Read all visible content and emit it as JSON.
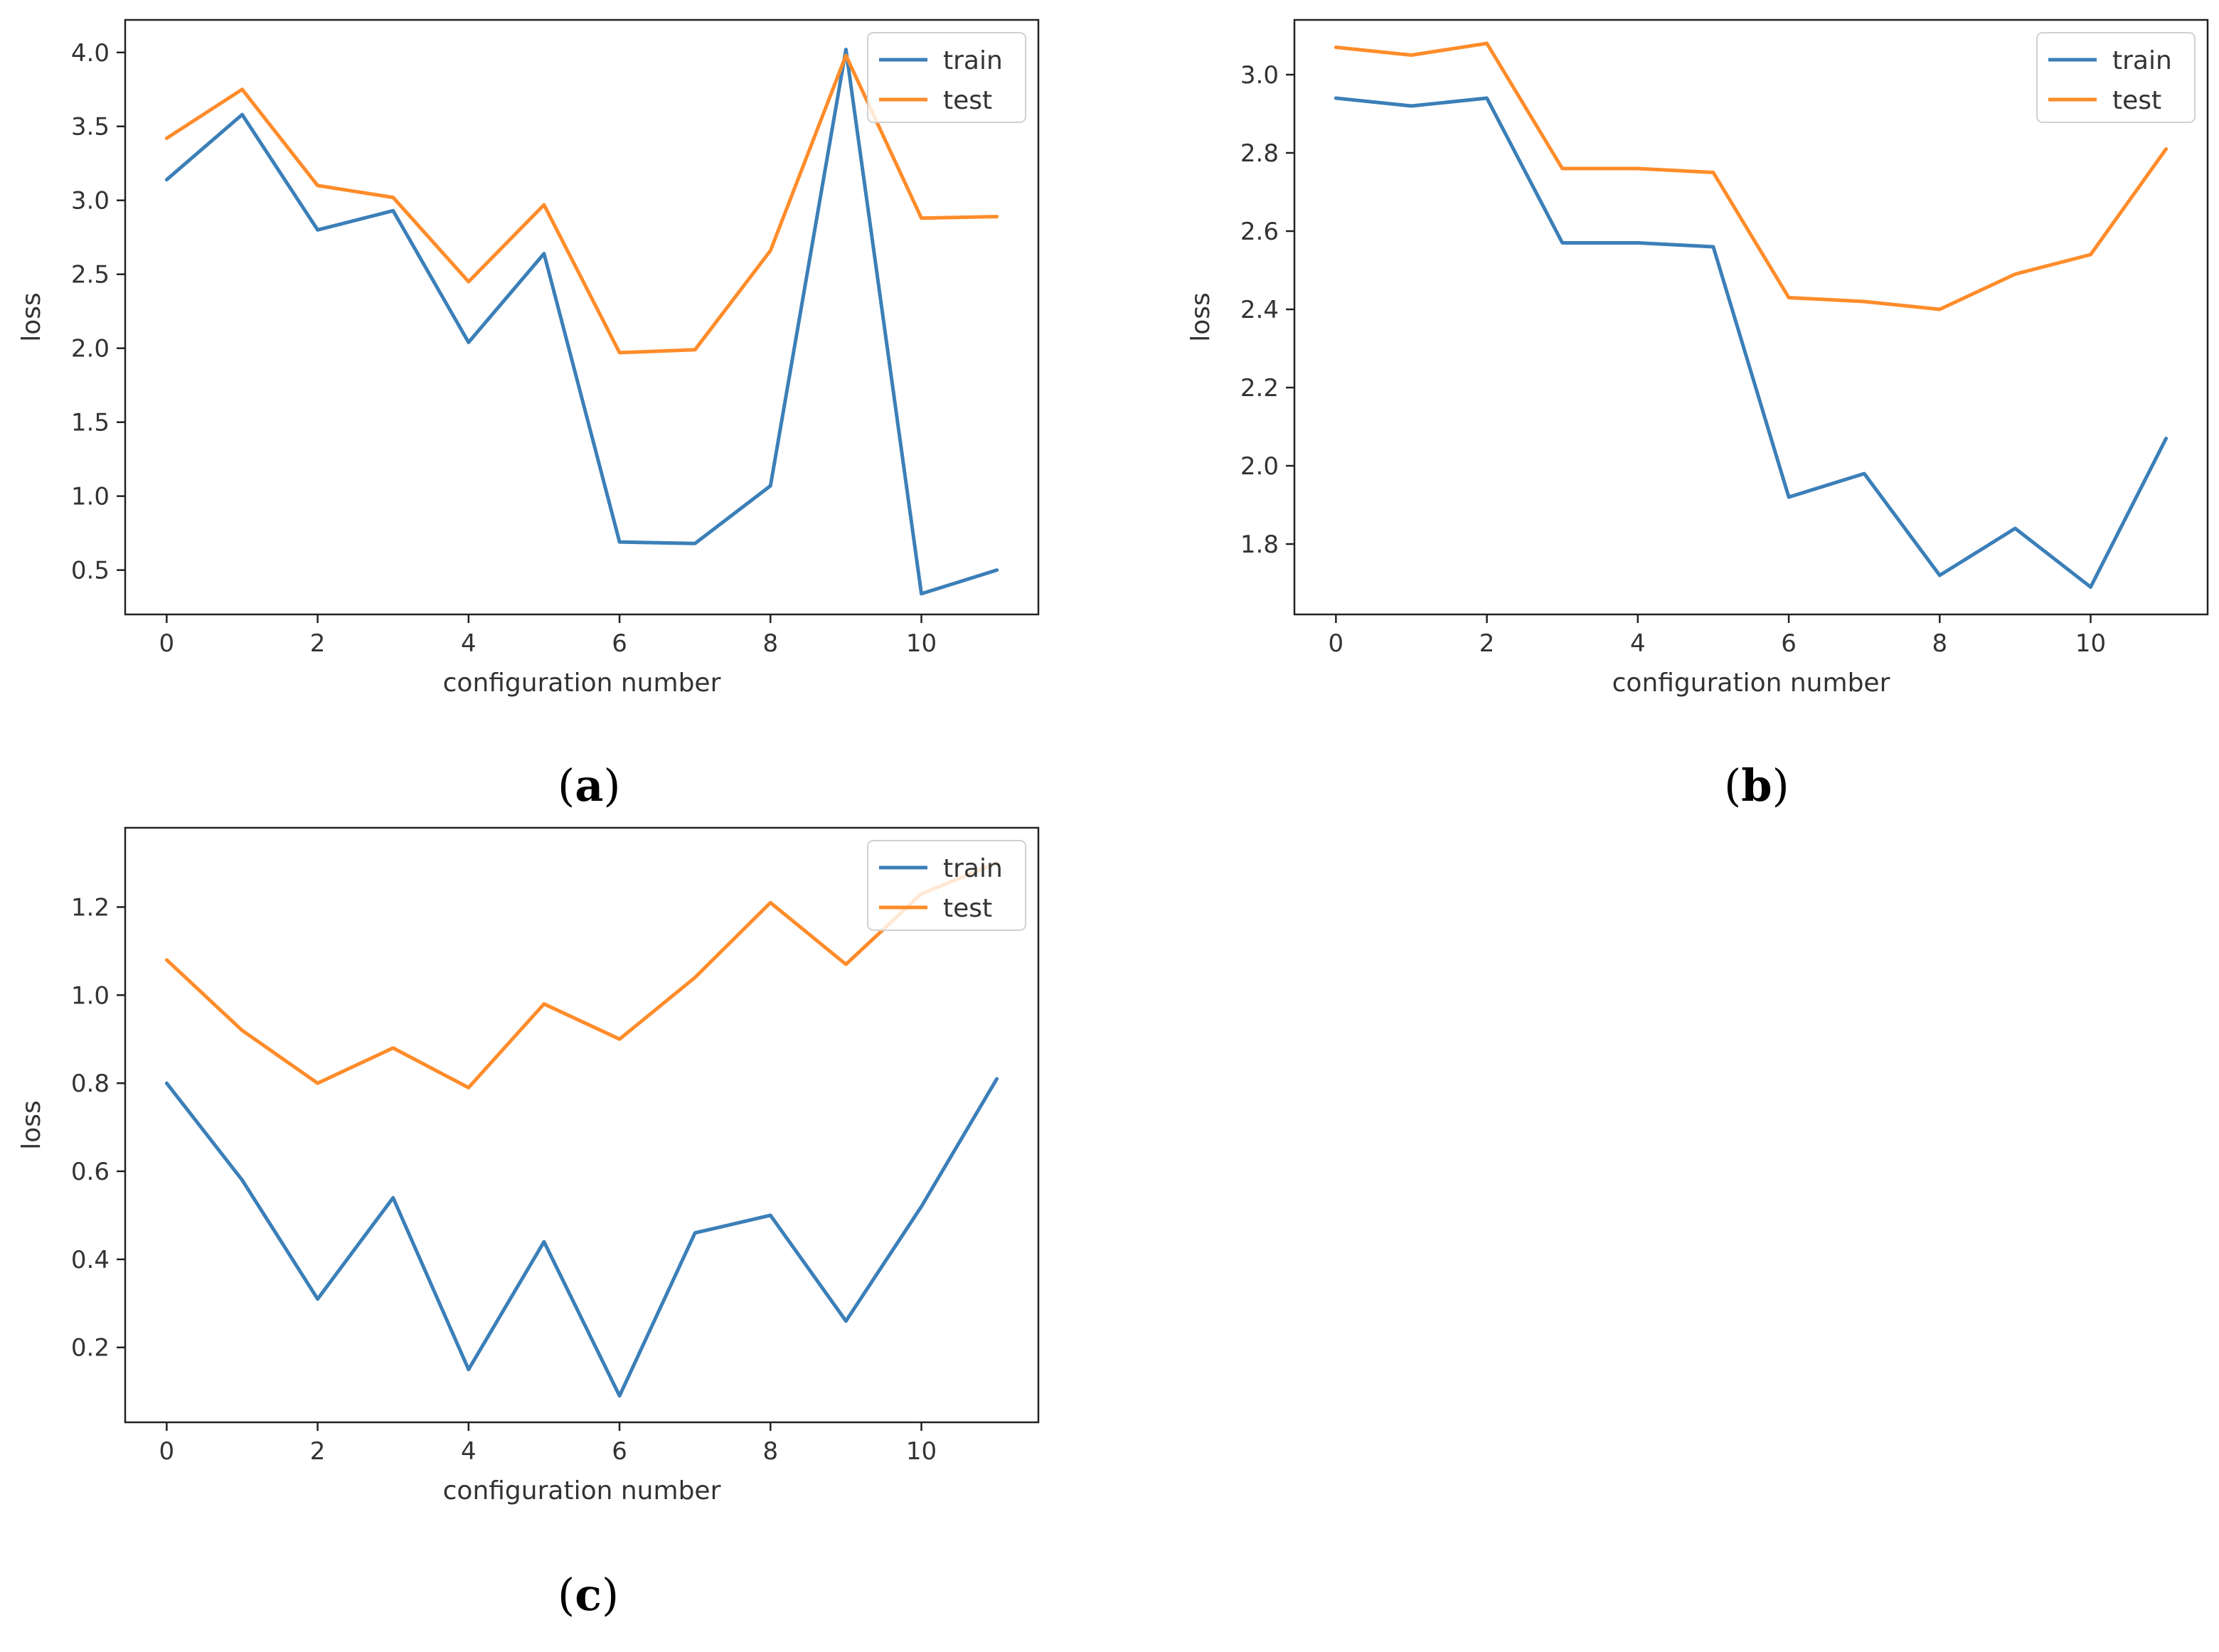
{
  "colors": {
    "train": "#3b7fb8",
    "test": "#ff8c2a",
    "axis": "#222222",
    "text": "#333333",
    "legend_border": "#d0d0d0"
  },
  "chart_data": [
    {
      "type": "line",
      "panel_label": "a",
      "xlabel": "configuration number",
      "ylabel": "loss",
      "xlim": [
        -0.55,
        11.55
      ],
      "ylim": [
        0.2,
        4.22
      ],
      "xticks": [
        0,
        2,
        4,
        6,
        8,
        10
      ],
      "xtick_labels": [
        "0",
        "2",
        "4",
        "6",
        "8",
        "10"
      ],
      "yticks": [
        0.5,
        1.0,
        1.5,
        2.0,
        2.5,
        3.0,
        3.5,
        4.0
      ],
      "ytick_labels": [
        "0.5",
        "1.0",
        "1.5",
        "2.0",
        "2.5",
        "3.0",
        "3.5",
        "4.0"
      ],
      "legend_position": "top-right",
      "x": [
        0,
        1,
        2,
        3,
        4,
        5,
        6,
        7,
        8,
        9,
        10,
        11
      ],
      "series": [
        {
          "name": "train",
          "color_key": "train",
          "values": [
            3.14,
            3.58,
            2.8,
            2.93,
            2.04,
            2.64,
            0.69,
            0.68,
            1.07,
            4.02,
            0.34,
            0.5
          ]
        },
        {
          "name": "test",
          "color_key": "test",
          "values": [
            3.42,
            3.75,
            3.1,
            3.02,
            2.45,
            2.97,
            1.97,
            1.99,
            2.66,
            3.98,
            2.88,
            2.89
          ]
        }
      ]
    },
    {
      "type": "line",
      "panel_label": "b",
      "xlabel": "configuration number",
      "ylabel": "loss",
      "xlim": [
        -0.55,
        11.55
      ],
      "ylim": [
        1.62,
        3.14
      ],
      "xticks": [
        0,
        2,
        4,
        6,
        8,
        10
      ],
      "xtick_labels": [
        "0",
        "2",
        "4",
        "6",
        "8",
        "10"
      ],
      "yticks": [
        1.8,
        2.0,
        2.2,
        2.4,
        2.6,
        2.8,
        3.0
      ],
      "ytick_labels": [
        "1.8",
        "2.0",
        "2.2",
        "2.4",
        "2.6",
        "2.8",
        "3.0"
      ],
      "legend_position": "top-right",
      "x": [
        0,
        1,
        2,
        3,
        4,
        5,
        6,
        7,
        8,
        9,
        10,
        11
      ],
      "series": [
        {
          "name": "train",
          "color_key": "train",
          "values": [
            2.94,
            2.92,
            2.94,
            2.57,
            2.57,
            2.56,
            1.92,
            1.98,
            1.72,
            1.84,
            1.69,
            2.07
          ]
        },
        {
          "name": "test",
          "color_key": "test",
          "values": [
            3.07,
            3.05,
            3.08,
            2.76,
            2.76,
            2.75,
            2.43,
            2.42,
            2.4,
            2.49,
            2.54,
            2.81
          ]
        }
      ]
    },
    {
      "type": "line",
      "panel_label": "c",
      "xlabel": "configuration number",
      "ylabel": "loss",
      "xlim": [
        -0.55,
        11.55
      ],
      "ylim": [
        0.03,
        1.38
      ],
      "xticks": [
        0,
        2,
        4,
        6,
        8,
        10
      ],
      "xtick_labels": [
        "0",
        "2",
        "4",
        "6",
        "8",
        "10"
      ],
      "yticks": [
        0.2,
        0.4,
        0.6,
        0.8,
        1.0,
        1.2
      ],
      "ytick_labels": [
        "0.2",
        "0.4",
        "0.6",
        "0.8",
        "1.0",
        "1.2"
      ],
      "legend_position": "top-right",
      "x": [
        0,
        1,
        2,
        3,
        4,
        5,
        6,
        7,
        8,
        9,
        10,
        11
      ],
      "series": [
        {
          "name": "train",
          "color_key": "train",
          "values": [
            0.8,
            0.58,
            0.31,
            0.54,
            0.15,
            0.44,
            0.09,
            0.46,
            0.5,
            0.26,
            0.52,
            0.81
          ]
        },
        {
          "name": "test",
          "color_key": "test",
          "values": [
            1.08,
            0.92,
            0.8,
            0.88,
            0.79,
            0.98,
            0.9,
            1.04,
            1.21,
            1.07,
            1.23,
            1.3
          ]
        }
      ]
    }
  ]
}
